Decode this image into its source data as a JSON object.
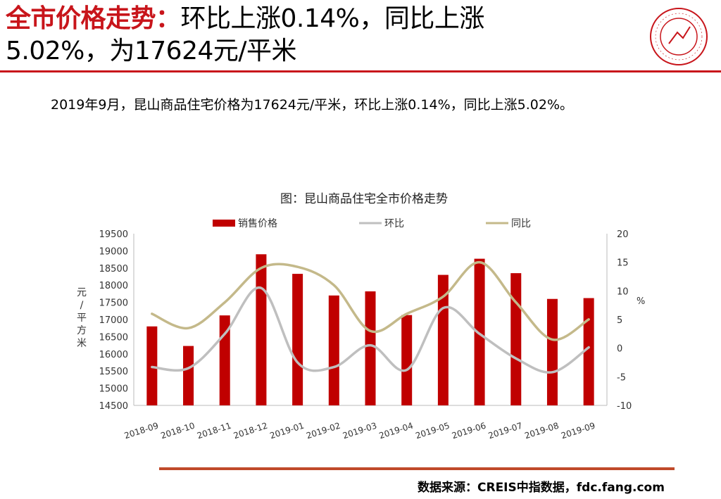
{
  "header": {
    "title_red": "全市价格走势：",
    "title_rest_line1": "环比上涨0.14%，同比上涨",
    "title_line2": "5.02%，为17624元/平米"
  },
  "summary": "2019年9月，昆山商品住宅价格为17624元/平米，环比上涨0.14%，同比上涨5.02%。",
  "source": "数据来源：CREIS中指数据，fdc.fang.com",
  "colors": {
    "accent": "#c8151b",
    "bar": "#c00000",
    "mom": "#bfbfbf",
    "yoy": "#c4b98a"
  },
  "chart_data": {
    "type": "bar",
    "title": "图：昆山商品住宅全市价格走势",
    "categories": [
      "2018-09",
      "2018-10",
      "2018-11",
      "2018-12",
      "2019-01",
      "2019-02",
      "2019-03",
      "2019-04",
      "2019-05",
      "2019-06",
      "2019-07",
      "2019-08",
      "2019-09"
    ],
    "series": [
      {
        "name": "销售价格",
        "type": "bar",
        "axis": "left",
        "values": [
          16800,
          16230,
          17120,
          18900,
          18330,
          17700,
          17820,
          17130,
          18300,
          18770,
          18350,
          17600,
          17624
        ]
      },
      {
        "name": "环比",
        "type": "line",
        "axis": "right",
        "values": [
          -3.3,
          -3.5,
          2.5,
          10.5,
          -2.5,
          -3.3,
          0.5,
          -3.8,
          7.0,
          2.5,
          -1.8,
          -4.2,
          0.14
        ]
      },
      {
        "name": "同比",
        "type": "line",
        "axis": "right",
        "values": [
          6.0,
          3.5,
          8.0,
          14.0,
          14.2,
          11.0,
          3.0,
          6.0,
          9.0,
          15.0,
          8.0,
          1.5,
          5.02
        ]
      }
    ],
    "ylabel": "元/平方米",
    "y2label": "%",
    "ylim": [
      14500,
      19500
    ],
    "yticks": [
      14500,
      15000,
      15500,
      16000,
      16500,
      17000,
      17500,
      18000,
      18500,
      19000,
      19500
    ],
    "y2lim": [
      -10,
      20
    ],
    "y2ticks": [
      -10,
      -5,
      0,
      5,
      10,
      15,
      20
    ],
    "legend": "top",
    "grid": false
  }
}
